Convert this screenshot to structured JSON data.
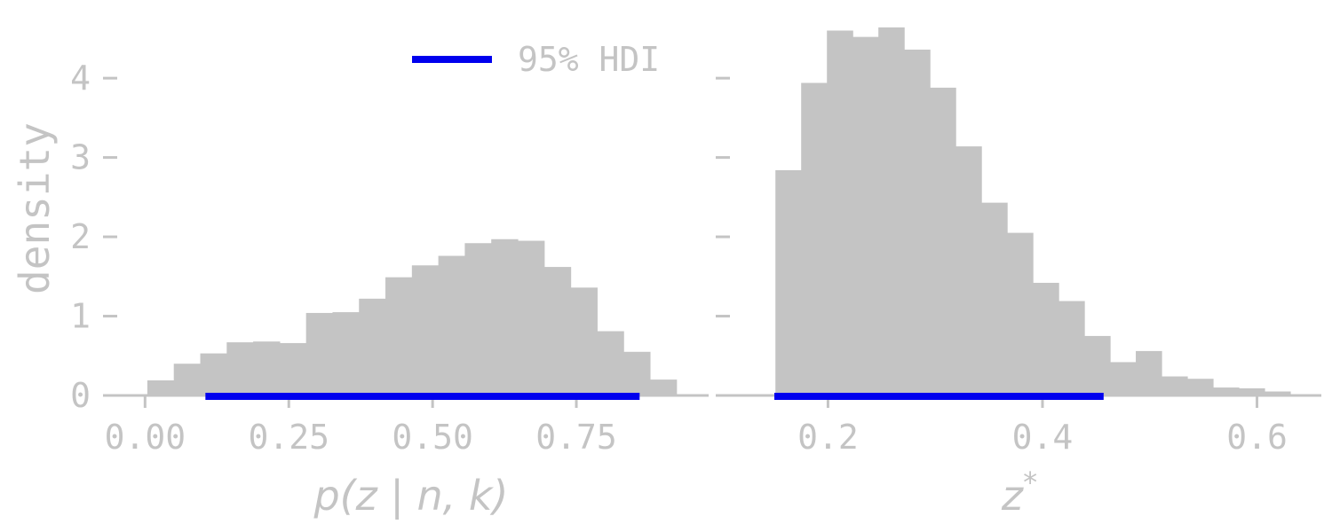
{
  "colors": {
    "bar": "#c4c4c4",
    "hdi": "#0000ee",
    "axis": "#c4c4c4",
    "text": "#c4c4c4",
    "background": "#ffffff"
  },
  "legend": {
    "label": "95% HDI",
    "placement": "top-center"
  },
  "ylabel": "density",
  "chart_data": [
    {
      "type": "bar",
      "subtype": "histogram",
      "xlabel": "p(z | n, k)",
      "ylabel": "density",
      "xlim": [
        -0.07,
        0.98
      ],
      "ylim": [
        0,
        4.65
      ],
      "xticks": [
        0.0,
        0.25,
        0.5,
        0.75
      ],
      "xtick_labels": [
        "0.00",
        "0.25",
        "0.50",
        "0.75"
      ],
      "yticks": [
        0,
        1,
        2,
        3,
        4
      ],
      "ytick_labels": [
        "0",
        "1",
        "2",
        "3",
        "4"
      ],
      "bin_edges": [
        0.004,
        0.05,
        0.096,
        0.142,
        0.188,
        0.234,
        0.28,
        0.326,
        0.372,
        0.418,
        0.464,
        0.51,
        0.556,
        0.602,
        0.648,
        0.694,
        0.74,
        0.786,
        0.832,
        0.878,
        0.924
      ],
      "values": [
        0.19,
        0.4,
        0.53,
        0.67,
        0.68,
        0.66,
        1.04,
        1.05,
        1.22,
        1.49,
        1.64,
        1.76,
        1.92,
        1.97,
        1.95,
        1.62,
        1.36,
        0.81,
        0.55,
        0.2
      ],
      "hdi": [
        0.105,
        0.86
      ],
      "hdi_y": 0.1,
      "grid": false
    },
    {
      "type": "bar",
      "subtype": "histogram",
      "xlabel": "z*",
      "ylabel": "density",
      "xlim": [
        0.097,
        0.66
      ],
      "ylim": [
        0,
        4.65
      ],
      "xticks": [
        0.2,
        0.4,
        0.6
      ],
      "xtick_labels": [
        "0.2",
        "0.4",
        "0.6"
      ],
      "yticks": [
        0,
        1,
        2,
        3,
        4
      ],
      "ytick_labels": [
        "",
        "",
        "",
        "",
        ""
      ],
      "bin_edges": [
        0.151,
        0.175,
        0.199,
        0.223,
        0.247,
        0.271,
        0.295,
        0.319,
        0.343,
        0.367,
        0.391,
        0.415,
        0.439,
        0.463,
        0.487,
        0.511,
        0.535,
        0.559,
        0.583,
        0.607,
        0.631,
        0.656
      ],
      "values": [
        2.84,
        3.94,
        4.6,
        4.52,
        4.64,
        4.36,
        3.88,
        3.14,
        2.43,
        2.05,
        1.42,
        1.19,
        0.75,
        0.42,
        0.56,
        0.24,
        0.21,
        0.1,
        0.09,
        0.05,
        0.0
      ],
      "hdi": [
        0.15,
        0.457
      ],
      "hdi_y": 0.1,
      "grid": false
    }
  ]
}
